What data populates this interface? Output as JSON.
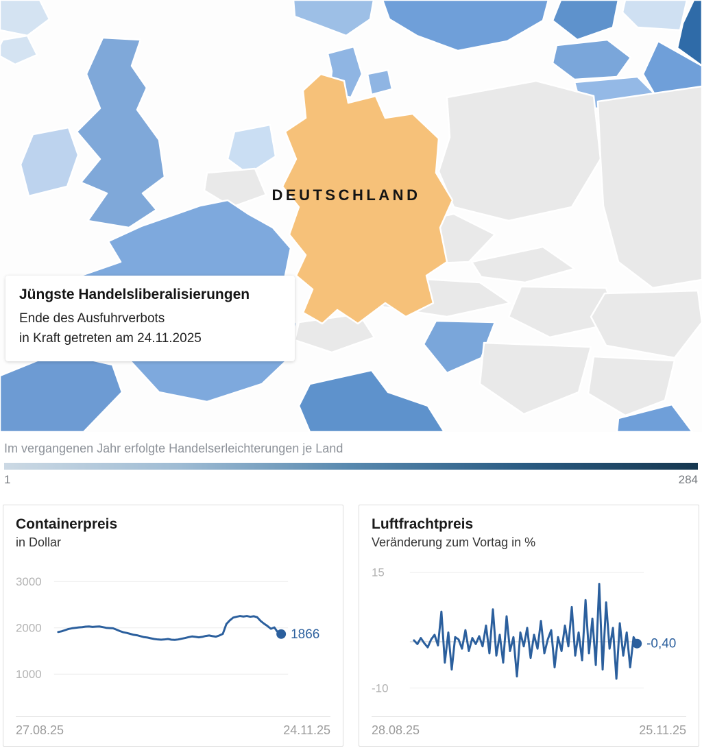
{
  "map": {
    "country_label": "DEUTSCHLAND",
    "highlight_color": "#f6c179",
    "info_box": {
      "title": "Jüngste Handelsliberalisierungen",
      "line1": "Ende des Ausfuhrverbots",
      "line2": "in Kraft getreten am 24.11.2025"
    }
  },
  "legend": {
    "label": "Im vergangenen Jahr erfolgte Handelserleichterungen je Land",
    "min": "1",
    "max": "284",
    "gradient": [
      "#ccd9e4",
      "#9fbcd4",
      "#5788ae",
      "#2a5b82",
      "#16374f"
    ]
  },
  "chart_data": [
    {
      "type": "line",
      "title": "Containerpreis",
      "subtitle": "in Dollar",
      "color": "#2b5f9d",
      "x_start_label": "27.08.25",
      "x_end_label": "24.11.25",
      "yticks": [
        3000,
        2000,
        1000
      ],
      "ylim": [
        400,
        3400
      ],
      "grid": true,
      "legend_position": "none",
      "end_label": "1866",
      "values": [
        1910,
        1925,
        1950,
        1975,
        1990,
        2000,
        2010,
        2015,
        2025,
        2030,
        2020,
        2025,
        2030,
        2015,
        2000,
        1995,
        1990,
        1960,
        1930,
        1905,
        1890,
        1870,
        1850,
        1840,
        1820,
        1800,
        1790,
        1775,
        1760,
        1750,
        1745,
        1750,
        1760,
        1745,
        1740,
        1750,
        1765,
        1780,
        1800,
        1815,
        1805,
        1795,
        1805,
        1825,
        1835,
        1820,
        1810,
        1835,
        1870,
        2080,
        2160,
        2220,
        2240,
        2255,
        2245,
        2255,
        2240,
        2250,
        2230,
        2150,
        2090,
        2040,
        1980,
        2010,
        1905,
        1866
      ]
    },
    {
      "type": "line",
      "title": "Luftfrachtpreis",
      "subtitle": "Veränderung zum Vortag in %",
      "color": "#2b5f9d",
      "x_start_label": "28.08.25",
      "x_end_label": "25.11.25",
      "yticks": [
        15,
        -10
      ],
      "ylim": [
        -13,
        17
      ],
      "zero_line": true,
      "grid": false,
      "legend_position": "none",
      "end_label": "-0,40",
      "values": [
        0.3,
        -0.5,
        0.8,
        -0.3,
        -1.2,
        0.5,
        1.5,
        -0.8,
        6.5,
        -4.5,
        2.0,
        -6.0,
        1.0,
        0.5,
        -1.5,
        2.5,
        -2.0,
        0.8,
        -0.5,
        1.2,
        -1.0,
        3.5,
        -2.5,
        7.0,
        -3.0,
        1.5,
        -4.5,
        5.5,
        -2.0,
        1.0,
        -7.5,
        2.0,
        -1.0,
        3.0,
        -3.5,
        1.5,
        -1.5,
        4.5,
        -2.5,
        0.5,
        2.5,
        -5.5,
        1.0,
        -2.0,
        3.5,
        -1.0,
        7.5,
        -3.0,
        2.0,
        -4.0,
        9.0,
        -2.5,
        5.0,
        -5.0,
        12.5,
        -6.0,
        8.5,
        -1.5,
        3.0,
        -8.0,
        4.0,
        -3.0,
        2.0,
        -5.5,
        1.0,
        -0.4
      ]
    }
  ]
}
